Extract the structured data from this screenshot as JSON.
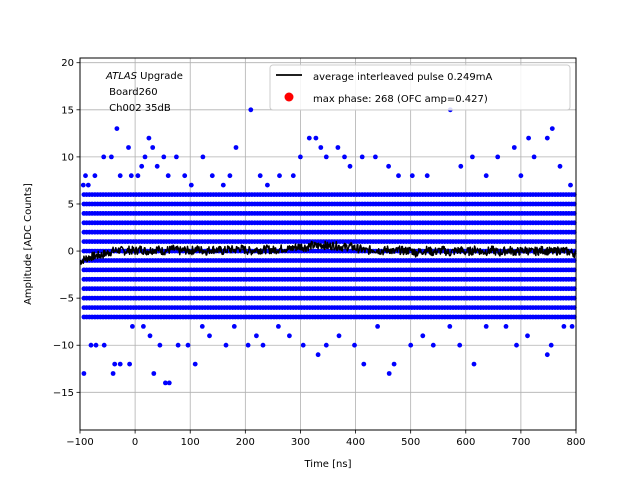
{
  "chart_data": {
    "type": "scatter",
    "xlabel": "Time [ns]",
    "ylabel": "Amplitude [ADC Counts]",
    "xlim": [
      -100,
      800
    ],
    "ylim": [
      -19,
      20.5
    ],
    "xticks": [
      -100,
      0,
      100,
      200,
      300,
      400,
      500,
      600,
      700,
      800
    ],
    "yticks": [
      -15,
      -10,
      -5,
      0,
      5,
      10,
      15,
      20
    ],
    "grid": true,
    "legend_position": "top-right",
    "annotation": {
      "prefix": "ATLAS",
      "suffix": " Upgrade",
      "line2": " Board260",
      "line3": " Ch002 35dB"
    },
    "series": [
      {
        "name": "average interleaved pulse 0.249mA",
        "kind": "line",
        "color": "#000000",
        "x": [
          -100,
          -90,
          -80,
          -70,
          -60,
          -50,
          -40,
          -30,
          -20,
          -10,
          0,
          10,
          20,
          30,
          40,
          50,
          60,
          70,
          80,
          90,
          100,
          110,
          120,
          130,
          140,
          150,
          160,
          170,
          180,
          190,
          200,
          210,
          220,
          230,
          240,
          250,
          260,
          270,
          280,
          290,
          300,
          310,
          320,
          330,
          340,
          350,
          360,
          370,
          380,
          390,
          400,
          410,
          420,
          430,
          440,
          450,
          460,
          470,
          480,
          490,
          500,
          510,
          520,
          530,
          540,
          550,
          560,
          570,
          580,
          590,
          600,
          610,
          620,
          630,
          640,
          650,
          660,
          670,
          680,
          690,
          700,
          710,
          720,
          730,
          740,
          750,
          760,
          770,
          780,
          790,
          800
        ],
        "y": [
          -1.1,
          -0.8,
          -0.6,
          -0.5,
          -0.4,
          -0.2,
          0.0,
          0.1,
          0.0,
          0.1,
          0.0,
          0.2,
          0.0,
          0.1,
          0.2,
          0.0,
          0.1,
          0.2,
          0.0,
          0.1,
          0.0,
          0.2,
          0.1,
          0.0,
          0.2,
          0.1,
          0.0,
          0.2,
          0.1,
          0.3,
          0.1,
          0.0,
          0.2,
          0.1,
          0.2,
          0.1,
          0.2,
          0.3,
          0.2,
          0.4,
          0.5,
          0.4,
          0.6,
          0.5,
          0.7,
          0.5,
          0.6,
          0.5,
          0.4,
          0.5,
          0.3,
          0.2,
          0.0,
          0.2,
          0.1,
          0.0,
          0.2,
          -0.1,
          0.1,
          0.0,
          0.1,
          -0.2,
          0.0,
          0.1,
          -0.1,
          0.0,
          0.1,
          -0.2,
          0.0,
          0.1,
          -0.1,
          0.0,
          0.2,
          -0.1,
          0.0,
          0.1,
          -0.2,
          0.0,
          0.1,
          -0.1,
          0.0,
          0.1,
          -0.1,
          0.0,
          0.1,
          0.0,
          -0.1,
          0.1,
          0.0,
          -0.1,
          -0.3
        ]
      },
      {
        "name": "max phase: 268 (OFC amp=0.427)",
        "kind": "points",
        "color": "#ff0000",
        "x": [],
        "y": []
      },
      {
        "name": "",
        "kind": "samples",
        "color": "#0000ff",
        "band_levels": [
          -7,
          -6,
          -5,
          -4,
          -3,
          -2,
          -1,
          0,
          1,
          2,
          3,
          4,
          5,
          6
        ],
        "band_x_range": [
          -93,
          798
        ],
        "outliers": [
          [
            -94,
            7
          ],
          [
            -90,
            8
          ],
          [
            -85,
            7
          ],
          [
            -73,
            8
          ],
          [
            -57,
            10
          ],
          [
            -33,
            13
          ],
          [
            -43,
            10
          ],
          [
            -27,
            8
          ],
          [
            -12,
            11
          ],
          [
            -7,
            8
          ],
          [
            5,
            8
          ],
          [
            12,
            9
          ],
          [
            18,
            10
          ],
          [
            25,
            12
          ],
          [
            32,
            11
          ],
          [
            40,
            9
          ],
          [
            52,
            10
          ],
          [
            60,
            8
          ],
          [
            75,
            10
          ],
          [
            90,
            8
          ],
          [
            102,
            7
          ],
          [
            123,
            10
          ],
          [
            140,
            8
          ],
          [
            160,
            7
          ],
          [
            172,
            8
          ],
          [
            183,
            11
          ],
          [
            210,
            15
          ],
          [
            227,
            8
          ],
          [
            240,
            7
          ],
          [
            262,
            8
          ],
          [
            287,
            8
          ],
          [
            300,
            10
          ],
          [
            316,
            12
          ],
          [
            328,
            12
          ],
          [
            337,
            11
          ],
          [
            347,
            10
          ],
          [
            368,
            11
          ],
          [
            380,
            10
          ],
          [
            390,
            9
          ],
          [
            412,
            10
          ],
          [
            436,
            10
          ],
          [
            460,
            9
          ],
          [
            478,
            8
          ],
          [
            503,
            8
          ],
          [
            530,
            8
          ],
          [
            572,
            15
          ],
          [
            591,
            9
          ],
          [
            612,
            10
          ],
          [
            637,
            8
          ],
          [
            658,
            10
          ],
          [
            688,
            11
          ],
          [
            700,
            8
          ],
          [
            714,
            12
          ],
          [
            724,
            10
          ],
          [
            748,
            12
          ],
          [
            757,
            13
          ],
          [
            771,
            9
          ],
          [
            790,
            7
          ],
          [
            -93,
            -13
          ],
          [
            -80,
            -10
          ],
          [
            -71,
            -10
          ],
          [
            -56,
            -10
          ],
          [
            -40,
            -13
          ],
          [
            -37,
            -12
          ],
          [
            -27,
            -12
          ],
          [
            -10,
            -12
          ],
          [
            -5,
            -8
          ],
          [
            15,
            -8
          ],
          [
            27,
            -9
          ],
          [
            34,
            -13
          ],
          [
            45,
            -10
          ],
          [
            55,
            -14
          ],
          [
            62,
            -14
          ],
          [
            78,
            -10
          ],
          [
            96,
            -10
          ],
          [
            109,
            -12
          ],
          [
            122,
            -8
          ],
          [
            135,
            -9
          ],
          [
            165,
            -10
          ],
          [
            180,
            -8
          ],
          [
            205,
            -10
          ],
          [
            220,
            -9
          ],
          [
            232,
            -10
          ],
          [
            260,
            -8
          ],
          [
            280,
            -9
          ],
          [
            305,
            -10
          ],
          [
            332,
            -11
          ],
          [
            347,
            -10
          ],
          [
            370,
            -9
          ],
          [
            398,
            -10
          ],
          [
            415,
            -12
          ],
          [
            440,
            -8
          ],
          [
            461,
            -13
          ],
          [
            470,
            -12
          ],
          [
            500,
            -10
          ],
          [
            522,
            -9
          ],
          [
            541,
            -10
          ],
          [
            571,
            -8
          ],
          [
            589,
            -10
          ],
          [
            615,
            -12
          ],
          [
            637,
            -8
          ],
          [
            673,
            -8
          ],
          [
            692,
            -10
          ],
          [
            712,
            -9
          ],
          [
            748,
            -11
          ],
          [
            755,
            -10
          ],
          [
            778,
            -8
          ],
          [
            793,
            -8
          ]
        ]
      }
    ]
  }
}
